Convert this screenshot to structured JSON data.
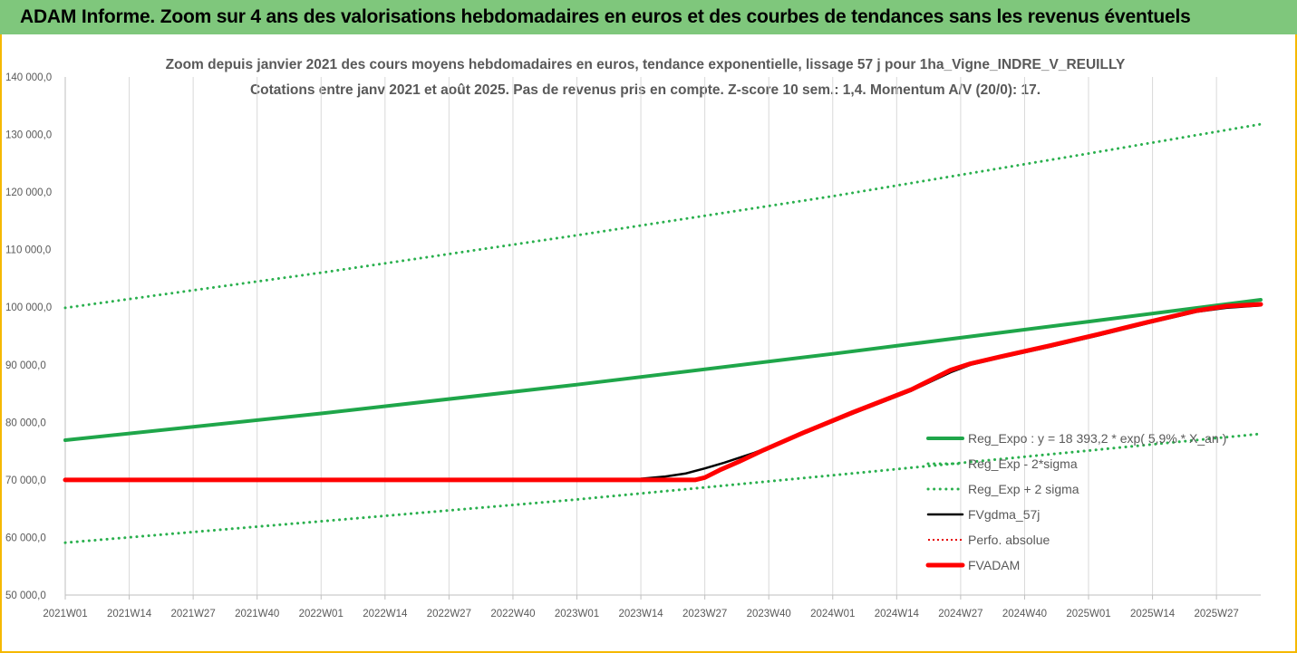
{
  "header": {
    "banner": "ADAM Informe. Zoom sur 4 ans des valorisations hebdomadaires en euros et des courbes de tendances sans les revenus éventuels"
  },
  "colors": {
    "banner_bg": "#7fc77c",
    "frame_border": "#f5b800",
    "reg_expo": "#1fa64a",
    "sigma": "#2ab04e",
    "fvgdma": "#000000",
    "perfo": "#e60000",
    "fvadam": "#ff0000",
    "text": "#595959",
    "grid": "#d9d9d9"
  },
  "chart_data": {
    "type": "line",
    "title": "Zoom depuis janvier 2021 des cours moyens hebdomadaires en euros, tendance exponentielle, lissage 57 j pour 1ha_Vigne_INDRE_V_REUILLY",
    "subtitle": "Cotations entre janv 2021 et août 2025. Pas de revenus pris en compte. Z-score 10 sem.: 1,4. Momentum A/V (20/0): 17.",
    "y_tick_labels": [
      "50 000,0",
      "60 000,0",
      "70 000,0",
      "80 000,0",
      "90 000,0",
      "100 000,0",
      "110 000,0",
      "120 000,0",
      "130 000,0",
      "140 000,0"
    ],
    "y_ticks": [
      50000,
      60000,
      70000,
      80000,
      90000,
      100000,
      110000,
      120000,
      130000,
      140000
    ],
    "ylim": [
      50000,
      140000
    ],
    "x_tick_labels": [
      "2021W01",
      "2021W14",
      "2021W27",
      "2021W40",
      "2022W01",
      "2022W14",
      "2022W27",
      "2022W40",
      "2023W01",
      "2023W14",
      "2023W27",
      "2023W40",
      "2024W01",
      "2024W14",
      "2024W27",
      "2024W40",
      "2025W01",
      "2025W14",
      "2025W27"
    ],
    "x_tick_positions": [
      0,
      13,
      26,
      39,
      52,
      65,
      78,
      91,
      104,
      117,
      130,
      143,
      156,
      169,
      182,
      195,
      208,
      221,
      234
    ],
    "x_range": [
      0,
      243
    ],
    "grid": "vertical",
    "legend_position": "right",
    "series": [
      {
        "name": "Reg_Expo : y = 18 393,2 * exp( 5,9% * X_an )",
        "style": "solid-thick",
        "color": "#1fa64a",
        "x": [
          0,
          52,
          104,
          156,
          208,
          243
        ],
        "y": [
          76900,
          81550,
          86550,
          91900,
          97500,
          101300
        ]
      },
      {
        "name": "Reg_Exp - 2*sigma",
        "style": "dotted",
        "color": "#2ab04e",
        "x": [
          0,
          52,
          104,
          156,
          208,
          243
        ],
        "y": [
          59100,
          62800,
          66600,
          70800,
          75100,
          78000
        ]
      },
      {
        "name": "Reg_Exp + 2 sigma",
        "style": "dotted",
        "color": "#2ab04e",
        "x": [
          0,
          52,
          104,
          156,
          208,
          243
        ],
        "y": [
          99900,
          106000,
          112500,
          119300,
          126700,
          131800
        ]
      },
      {
        "name": "FVgdma_57j",
        "style": "solid",
        "color": "#000000",
        "x": [
          0,
          110,
          117,
          122,
          126,
          130,
          134,
          140,
          150,
          160,
          172,
          180,
          184,
          190,
          200,
          210,
          220,
          230,
          236,
          243
        ],
        "y": [
          70000,
          70000,
          70200,
          70600,
          71100,
          72000,
          73000,
          74700,
          78000,
          81500,
          85500,
          88700,
          90000,
          91200,
          93100,
          95100,
          97200,
          99200,
          99900,
          100300
        ]
      },
      {
        "name": "Perfo. absolue",
        "style": "dotted-thin",
        "color": "#e60000",
        "x": [],
        "y": []
      },
      {
        "name": "FVADAM",
        "style": "solid-thick",
        "color": "#ff0000",
        "x": [
          0,
          128,
          130,
          133,
          137,
          142,
          150,
          160,
          172,
          180,
          184,
          190,
          200,
          210,
          220,
          230,
          236,
          243
        ],
        "y": [
          70000,
          70000,
          70400,
          71700,
          73200,
          75200,
          78200,
          81700,
          85700,
          89100,
          90200,
          91400,
          93300,
          95300,
          97400,
          99400,
          100200,
          100500
        ]
      }
    ]
  }
}
